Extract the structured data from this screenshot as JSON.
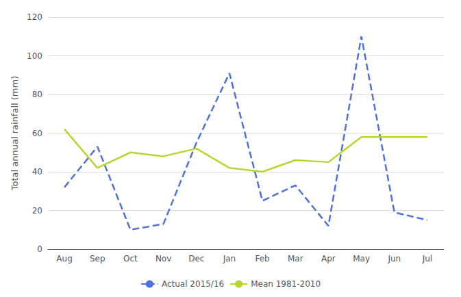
{
  "chart_data": {
    "type": "line",
    "categories": [
      "Aug",
      "Sep",
      "Oct",
      "Nov",
      "Dec",
      "Jan",
      "Feb",
      "Mar",
      "Apr",
      "May",
      "Jun",
      "Jul"
    ],
    "series": [
      {
        "name": "Actual 2015/16",
        "values": [
          32,
          53,
          10,
          13,
          55,
          91,
          25,
          33,
          12,
          110,
          19,
          15
        ],
        "line_style": "dashed"
      },
      {
        "name": "Mean 1981-2010",
        "values": [
          62,
          42,
          50,
          48,
          52,
          42,
          40,
          46,
          45,
          58,
          58,
          58
        ],
        "line_style": "solid"
      }
    ],
    "ylabel": "Total annual rainfall (mm)",
    "ylim": [
      0,
      120
    ],
    "yticks": [
      0,
      20,
      40,
      60,
      80,
      100,
      120
    ],
    "grid": true,
    "legend": "bottom"
  }
}
